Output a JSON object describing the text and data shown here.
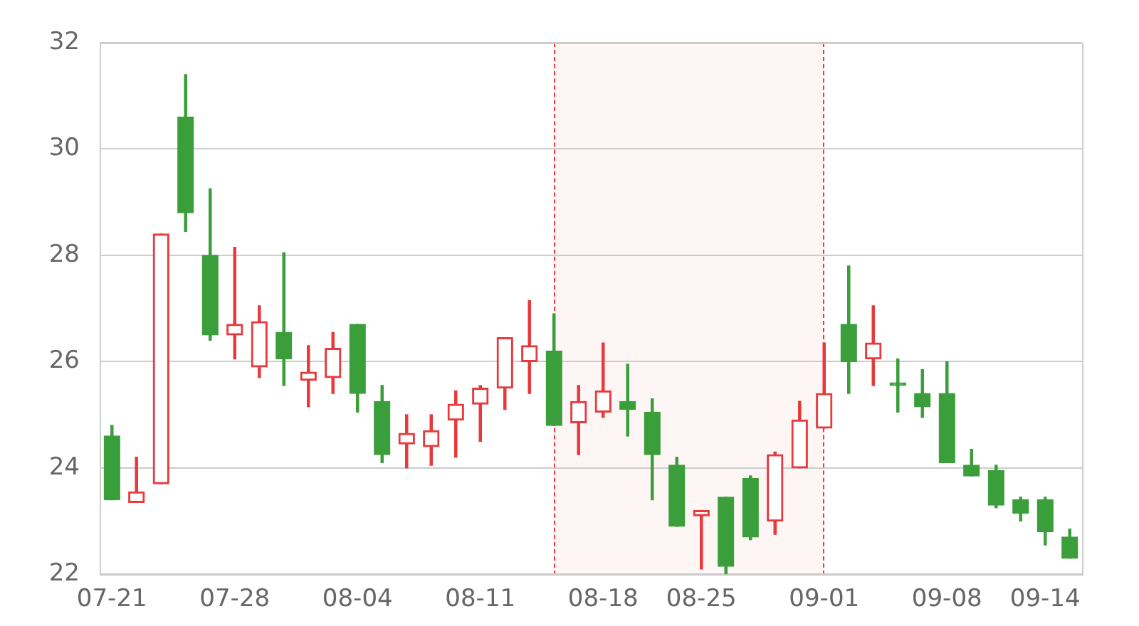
{
  "chart_data": {
    "type": "candlestick",
    "categories": [
      "07-21",
      null,
      null,
      null,
      null,
      "07-28",
      null,
      null,
      null,
      null,
      "08-04",
      null,
      null,
      null,
      null,
      "08-11",
      null,
      null,
      null,
      null,
      "08-18",
      null,
      null,
      null,
      "08-25",
      null,
      null,
      null,
      null,
      "09-01",
      null,
      null,
      null,
      null,
      "09-08",
      null,
      null,
      null,
      "09-14",
      null
    ],
    "ohlc": [
      [
        24.6,
        24.8,
        23.4,
        23.4
      ],
      [
        23.35,
        24.2,
        23.35,
        23.55
      ],
      [
        23.7,
        28.4,
        23.7,
        28.4
      ],
      [
        30.6,
        31.4,
        28.45,
        28.8
      ],
      [
        28.0,
        29.25,
        26.4,
        26.5
      ],
      [
        26.5,
        28.15,
        26.05,
        26.7
      ],
      [
        25.9,
        27.05,
        25.7,
        26.75
      ],
      [
        26.55,
        28.05,
        25.55,
        26.05
      ],
      [
        25.65,
        26.3,
        25.15,
        25.8
      ],
      [
        25.7,
        26.55,
        25.4,
        26.25
      ],
      [
        26.7,
        26.7,
        25.05,
        25.4
      ],
      [
        25.25,
        25.55,
        24.1,
        24.25
      ],
      [
        24.45,
        25.0,
        24.0,
        24.65
      ],
      [
        24.4,
        25.0,
        24.05,
        24.7
      ],
      [
        24.9,
        25.45,
        24.2,
        25.2
      ],
      [
        25.2,
        25.55,
        24.5,
        25.5
      ],
      [
        25.5,
        26.45,
        25.1,
        26.45
      ],
      [
        26.0,
        27.15,
        25.4,
        26.3
      ],
      [
        26.2,
        26.9,
        24.8,
        24.8
      ],
      [
        24.85,
        25.55,
        24.25,
        25.25
      ],
      [
        25.05,
        26.35,
        24.95,
        25.45
      ],
      [
        25.25,
        25.95,
        24.6,
        25.1
      ],
      [
        25.05,
        25.3,
        23.4,
        24.25
      ],
      [
        24.05,
        24.2,
        22.9,
        22.9
      ],
      [
        23.1,
        23.2,
        22.1,
        23.2
      ],
      [
        23.45,
        23.45,
        22.0,
        22.15
      ],
      [
        23.8,
        23.85,
        22.65,
        22.7
      ],
      [
        23.0,
        24.3,
        22.75,
        24.25
      ],
      [
        24.0,
        25.25,
        24.0,
        24.9
      ],
      [
        24.75,
        26.35,
        24.75,
        25.4
      ],
      [
        26.7,
        27.8,
        25.4,
        26.0
      ],
      [
        26.05,
        27.05,
        25.55,
        26.35
      ],
      [
        25.6,
        26.05,
        25.05,
        25.55
      ],
      [
        25.4,
        25.85,
        24.95,
        25.15
      ],
      [
        25.4,
        26.0,
        24.1,
        24.1
      ],
      [
        24.05,
        24.35,
        23.85,
        23.85
      ],
      [
        23.95,
        24.05,
        23.25,
        23.3
      ],
      [
        23.4,
        23.45,
        23.0,
        23.15
      ],
      [
        23.4,
        23.45,
        22.55,
        22.8
      ],
      [
        22.7,
        22.85,
        22.3,
        22.3
      ]
    ],
    "colors": [
      "#3a9e3a",
      "#e8393c",
      "#e8393c",
      "#3a9e3a",
      "#3a9e3a",
      "#e8393c",
      "#e8393c",
      "#3a9e3a",
      "#e8393c",
      "#e8393c",
      "#3a9e3a",
      "#3a9e3a",
      "#e8393c",
      "#e8393c",
      "#e8393c",
      "#e8393c",
      "#e8393c",
      "#e8393c",
      "#3a9e3a",
      "#e8393c",
      "#e8393c",
      "#3a9e3a",
      "#3a9e3a",
      "#3a9e3a",
      "#e8393c",
      "#3a9e3a",
      "#3a9e3a",
      "#e8393c",
      "#e8393c",
      "#e8393c",
      "#3a9e3a",
      "#e8393c",
      "#3a9e3a",
      "#3a9e3a",
      "#3a9e3a",
      "#3a9e3a",
      "#3a9e3a",
      "#3a9e3a",
      "#3a9e3a",
      "#3a9e3a"
    ],
    "ylim": [
      22,
      32
    ],
    "yticks": [
      22,
      24,
      26,
      28,
      30,
      32
    ],
    "grid": "y"
  }
}
